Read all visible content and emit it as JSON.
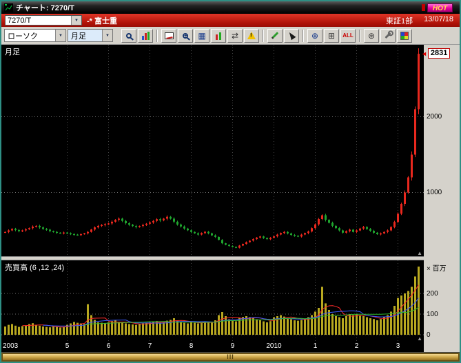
{
  "window": {
    "title": "チャート: 7270/T",
    "hot_label": "HOT"
  },
  "quote_bar": {
    "symbol": "7270/T",
    "name": "-* 富士重",
    "market": "東証1部",
    "date": "13/07/18"
  },
  "toolbar": {
    "chart_type": "ローソク",
    "interval": "月足",
    "all_label": "ALL",
    "glyphs": {
      "table": "▦",
      "compare": "⇄",
      "crosshair_expand": "⊕",
      "crosshair": "⊞",
      "gear": "⊛"
    },
    "icons": [
      "zoom-icon",
      "chart-bars-icon",
      "draw-chart-icon",
      "zoom-plus-icon",
      "table-icon",
      "candlestick-icon",
      "compare-arrows-icon",
      "alert-icon",
      "pencil-icon",
      "cursor-icon",
      "crosshair-expand-icon",
      "crosshair-icon",
      "all-button",
      "gear-icon",
      "wrench-icon",
      "palette-icon"
    ]
  },
  "chart": {
    "pane_label": "月足",
    "volume_label": "売買高 (6 ,12 ,24)",
    "volume_unit": "× 百万",
    "last_price": "2831",
    "price_ticks": [
      {
        "value": 2000,
        "label": "2000"
      },
      {
        "value": 1000,
        "label": "1000"
      }
    ],
    "volume_ticks": [
      {
        "value": 200,
        "label": "200"
      },
      {
        "value": 100,
        "label": "100"
      },
      {
        "value": 0,
        "label": "0"
      }
    ],
    "x_labels": [
      {
        "label": "2003",
        "index": 0
      },
      {
        "label": "5",
        "index": 18
      },
      {
        "label": "6",
        "index": 30
      },
      {
        "label": "7",
        "index": 42
      },
      {
        "label": "8",
        "index": 54
      },
      {
        "label": "9",
        "index": 66
      },
      {
        "label": "2010",
        "index": 78
      },
      {
        "label": "1",
        "index": 90
      },
      {
        "label": "2",
        "index": 102
      },
      {
        "label": "3",
        "index": 114
      }
    ]
  },
  "scrollbar": {
    "grip": "III"
  },
  "chart_data": {
    "type": "candlestick+volume",
    "title": "7270/T 富士重 月足",
    "interval": "monthly",
    "start": "2003-07",
    "end": "2013-07",
    "last_price": 2831,
    "price_axis": {
      "min": 150,
      "max": 2950,
      "gridlines": [
        1000,
        2000
      ]
    },
    "volume_axis": {
      "max": 350,
      "gridlines": [
        0,
        100,
        200
      ],
      "unit": "million shares"
    },
    "volume_ma_windows": [
      6,
      12,
      24
    ],
    "colors": {
      "up": "#e8281e",
      "down": "#1fa42e",
      "volume": "#b8a820",
      "ma6": "#ff2a2a",
      "ma12": "#3a5bff",
      "ma24": "#2db82d",
      "accent_red": "#c00000",
      "hot_magenta": "#e6009e",
      "window_teal": "#2e8f84"
    },
    "closes": [
      480,
      500,
      520,
      505,
      490,
      500,
      515,
      530,
      550,
      560,
      540,
      520,
      510,
      490,
      480,
      470,
      462,
      472,
      462,
      452,
      445,
      440,
      450,
      462,
      480,
      512,
      540,
      560,
      572,
      582,
      592,
      615,
      640,
      655,
      625,
      595,
      575,
      558,
      545,
      558,
      572,
      588,
      605,
      625,
      648,
      632,
      655,
      680,
      655,
      615,
      578,
      552,
      525,
      502,
      480,
      462,
      445,
      465,
      482,
      462,
      435,
      415,
      375,
      330,
      310,
      295,
      282,
      272,
      300,
      322,
      345,
      365,
      385,
      405,
      420,
      400,
      385,
      402,
      422,
      445,
      465,
      480,
      460,
      440,
      430,
      420,
      445,
      465,
      485,
      530,
      580,
      650,
      700,
      640,
      600,
      560,
      530,
      500,
      470,
      490,
      510,
      480,
      500,
      525,
      545,
      520,
      495,
      470,
      450,
      460,
      480,
      500,
      545,
      612,
      720,
      850,
      1000,
      1200,
      1500,
      2100,
      2831
    ],
    "volumes_millions": [
      40,
      48,
      52,
      44,
      38,
      42,
      44,
      52,
      56,
      48,
      44,
      40,
      38,
      36,
      40,
      38,
      35,
      38,
      48,
      55,
      62,
      58,
      55,
      52,
      148,
      95,
      72,
      60,
      58,
      55,
      60,
      66,
      70,
      62,
      58,
      55,
      52,
      50,
      48,
      52,
      55,
      58,
      60,
      62,
      66,
      58,
      62,
      68,
      72,
      80,
      70,
      62,
      58,
      55,
      60,
      58,
      55,
      60,
      65,
      62,
      58,
      70,
      95,
      110,
      90,
      75,
      70,
      65,
      82,
      86,
      90,
      85,
      80,
      75,
      70,
      65,
      60,
      66,
      85,
      90,
      95,
      88,
      80,
      75,
      70,
      68,
      72,
      78,
      85,
      95,
      112,
      130,
      232,
      152,
      120,
      100,
      90,
      85,
      80,
      90,
      100,
      95,
      100,
      95,
      90,
      85,
      80,
      76,
      70,
      76,
      85,
      95,
      112,
      140,
      178,
      190,
      200,
      212,
      232,
      282,
      330
    ]
  }
}
